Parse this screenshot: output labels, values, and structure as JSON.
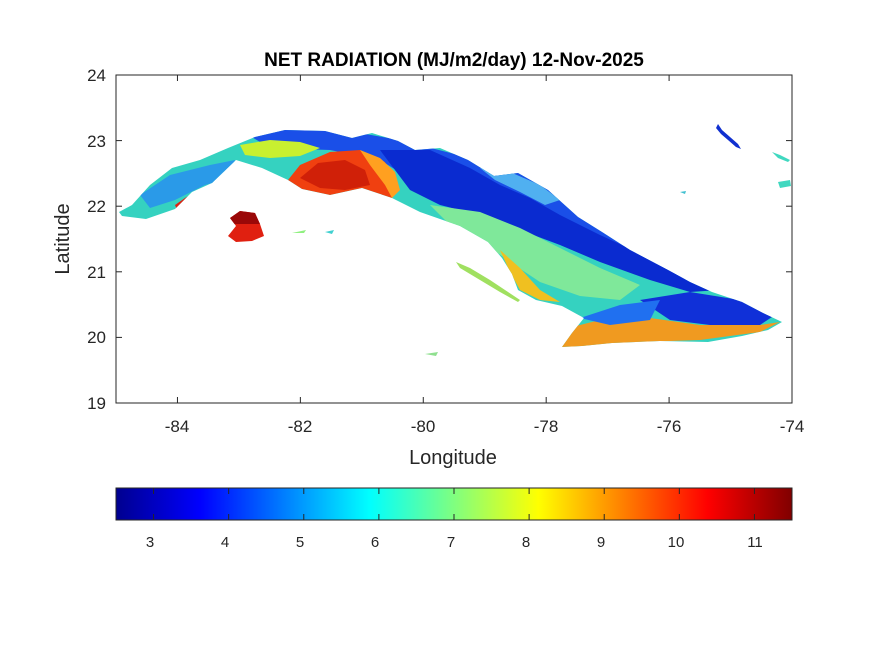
{
  "title": "NET RADIATION (MJ/m2/day) 12-Nov-2025",
  "map": {
    "xlabel": "Longitude",
    "ylabel": "Latitude",
    "xlim": [
      -85,
      -74
    ],
    "ylim": [
      19,
      24
    ],
    "x_ticks": [
      "-84",
      "-82",
      "-80",
      "-78",
      "-76",
      "-74"
    ],
    "y_ticks": [
      "19",
      "20",
      "21",
      "22",
      "23",
      "24"
    ],
    "x_tick_values": [
      -84,
      -82,
      -80,
      -78,
      -76,
      -74
    ],
    "y_tick_values": [
      19,
      20,
      21,
      22,
      23,
      24
    ],
    "colormap": "jet"
  },
  "colorbar": {
    "range": [
      2.5,
      11.5
    ],
    "ticks": [
      "3",
      "4",
      "5",
      "6",
      "7",
      "8",
      "9",
      "10",
      "11"
    ],
    "tick_values": [
      3,
      4,
      5,
      6,
      7,
      8,
      9,
      10,
      11
    ]
  }
}
